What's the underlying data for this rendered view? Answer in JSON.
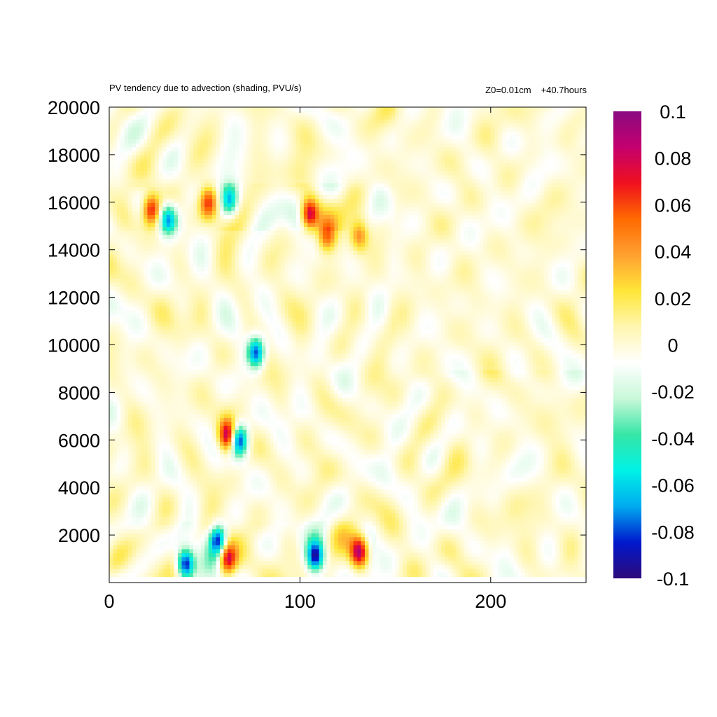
{
  "title_left": "PV tendency due to advection (shading, PVU/s)",
  "title_right_a": "Z0=0.01cm",
  "title_right_b": "+40.7hours",
  "chart_data": {
    "type": "heatmap",
    "title": "PV tendency due to advection (shading, PVU/s)",
    "annotation": "Z0=0.01cm   +40.7hours",
    "units": "PVU/s",
    "xlim": [
      0,
      250
    ],
    "ylim": [
      250,
      20000
    ],
    "x_ticks": [
      "0",
      "100",
      "200"
    ],
    "y_ticks": [
      "2000",
      "4000",
      "6000",
      "8000",
      "10000",
      "12000",
      "14000",
      "16000",
      "18000",
      "20000"
    ],
    "colorbar": {
      "range": [
        -0.1,
        0.1
      ],
      "ticks": [
        "0.1",
        "0.08",
        "0.06",
        "0.04",
        "0.02",
        "0",
        "-0.02",
        "-0.04",
        "-0.06",
        "-0.08",
        "-0.1"
      ],
      "colors": [
        "#2e0a7a",
        "#0018cc",
        "#00aaf0",
        "#00f2e6",
        "#36e6a6",
        "#c8f8d8",
        "#ffffff",
        "#fff6b0",
        "#ffe638",
        "#ffa030",
        "#ff6a00",
        "#f0101e",
        "#c4006e",
        "#8a0a80"
      ]
    },
    "features": [
      {
        "x": 22,
        "y": 15700,
        "value": 0.08
      },
      {
        "x": 105,
        "y": 15500,
        "value": 0.085
      },
      {
        "x": 52,
        "y": 16000,
        "value": 0.06
      },
      {
        "x": 62,
        "y": 6200,
        "value": 0.09
      },
      {
        "x": 131,
        "y": 1300,
        "value": 0.09
      },
      {
        "x": 62,
        "y": 1000,
        "value": 0.08
      },
      {
        "x": 77,
        "y": 9700,
        "value": -0.085
      },
      {
        "x": 68,
        "y": 6000,
        "value": -0.09
      },
      {
        "x": 108,
        "y": 1100,
        "value": -0.09
      },
      {
        "x": 40,
        "y": 800,
        "value": -0.1
      },
      {
        "x": 57,
        "y": 1800,
        "value": -0.09
      },
      {
        "x": 31,
        "y": 15300,
        "value": -0.07
      },
      {
        "x": 63,
        "y": 16100,
        "value": -0.065
      },
      {
        "x": 114,
        "y": 14600,
        "value": 0.05
      },
      {
        "x": 131,
        "y": 14600,
        "value": 0.045
      }
    ]
  }
}
